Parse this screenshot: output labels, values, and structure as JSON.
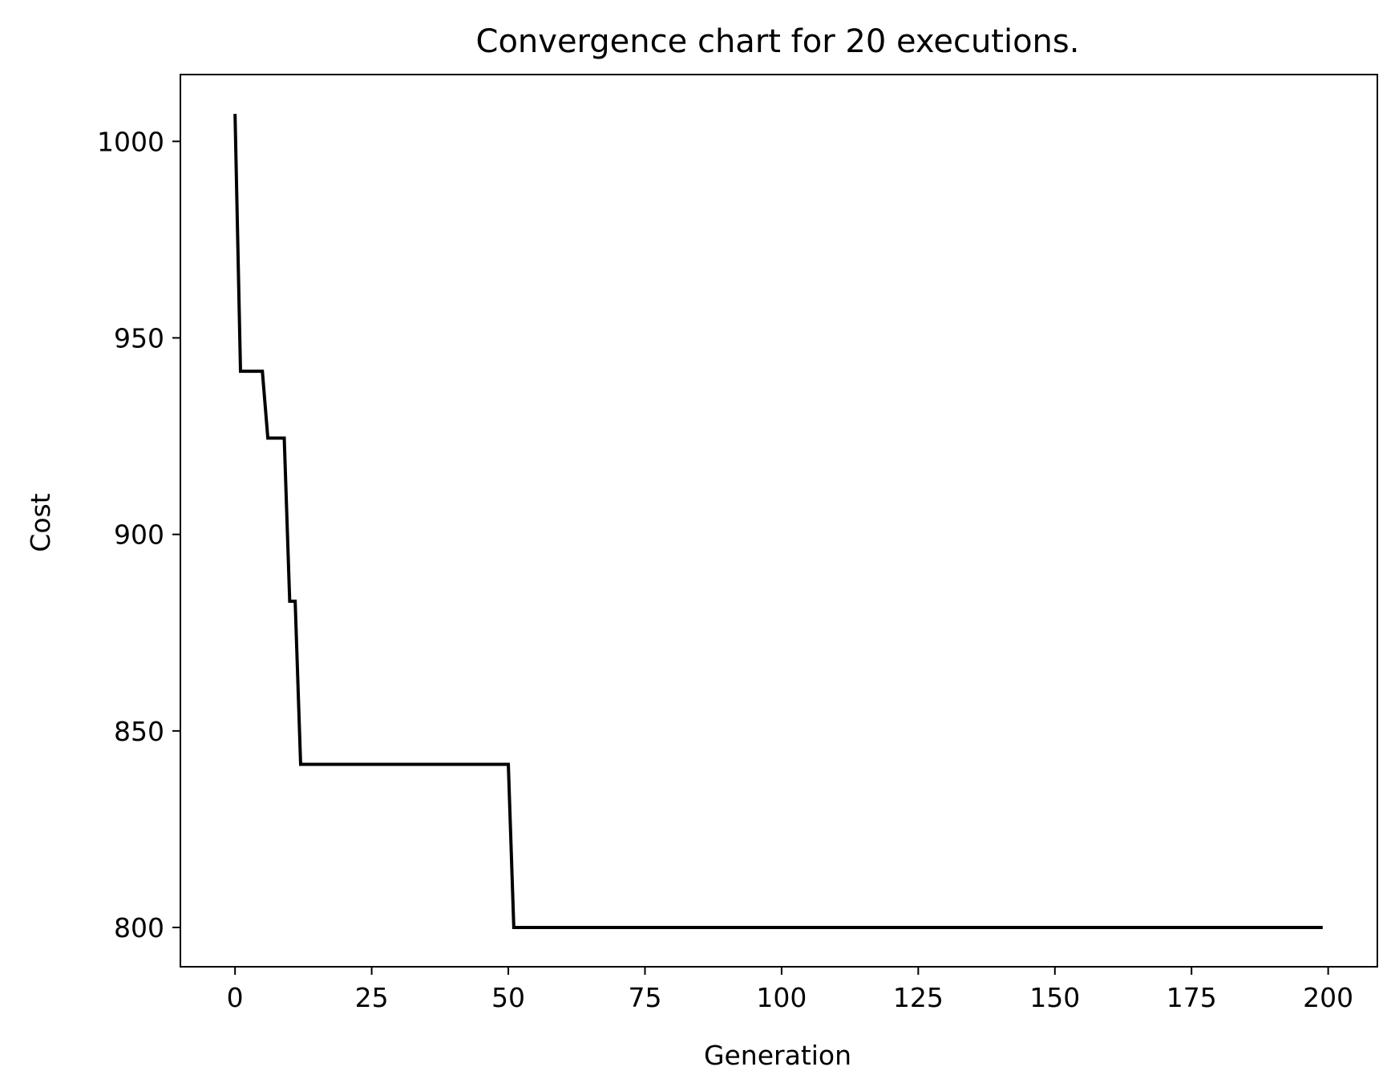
{
  "chart_data": {
    "type": "line",
    "title": "Convergence chart for 20 executions.",
    "xlabel": "Generation",
    "ylabel": "Cost",
    "xlim": [
      -10,
      209
    ],
    "ylim": [
      790,
      1017
    ],
    "xticks": [
      0,
      25,
      50,
      75,
      100,
      125,
      150,
      175,
      200
    ],
    "xtick_labels": [
      "0",
      "25",
      "50",
      "75",
      "100",
      "125",
      "150",
      "175",
      "200"
    ],
    "yticks": [
      800,
      850,
      900,
      950,
      1000
    ],
    "ytick_labels": [
      "800",
      "850",
      "900",
      "950",
      "1000"
    ],
    "grid": false,
    "legend": "none",
    "series": [
      {
        "color": "#000000",
        "x": [
          0,
          1,
          5,
          6,
          9,
          10,
          11,
          12,
          50,
          51,
          199
        ],
        "y": [
          1007,
          941.5,
          941.5,
          924.5,
          924.5,
          883,
          883,
          841.5,
          841.5,
          800,
          800
        ]
      }
    ]
  }
}
